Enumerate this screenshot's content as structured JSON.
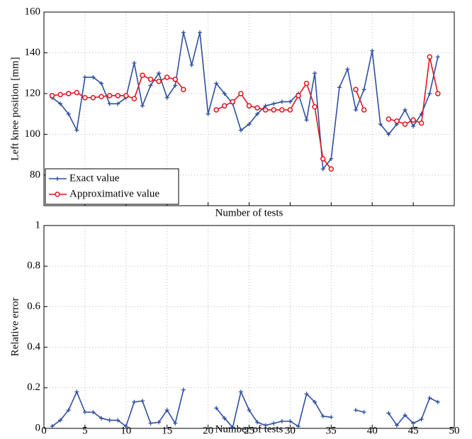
{
  "chart_data": [
    {
      "type": "line",
      "ylabel": "Left knee position [mm]",
      "xlabel": "Number of tests",
      "x": [
        1,
        2,
        3,
        4,
        5,
        6,
        7,
        8,
        9,
        10,
        11,
        12,
        13,
        14,
        15,
        16,
        17,
        18,
        19,
        20,
        21,
        22,
        23,
        24,
        25,
        26,
        27,
        28,
        29,
        30,
        31,
        32,
        33,
        34,
        35,
        36,
        37,
        38,
        39,
        40,
        41,
        42,
        43,
        44,
        45,
        46,
        47,
        48
      ],
      "series": [
        {
          "name": "Exact value",
          "color": "#2f4f9f",
          "marker": "plus",
          "values": [
            118,
            115,
            110,
            102,
            128,
            128,
            125,
            115,
            115,
            118,
            135,
            114,
            124,
            130,
            118,
            124,
            150,
            134,
            150,
            110,
            125,
            120,
            115,
            102,
            105,
            110,
            114,
            115,
            116,
            116,
            120,
            107,
            130,
            83,
            88,
            123,
            132,
            112,
            122,
            141,
            105,
            100,
            105,
            112,
            104,
            110,
            120,
            138
          ]
        },
        {
          "name": "Approximative value",
          "color": "#e3141e",
          "marker": "circle",
          "values": [
            119,
            119.5,
            120,
            120.5,
            118,
            118,
            118.5,
            119,
            119,
            119,
            117.5,
            129,
            127,
            126,
            128,
            127,
            122,
            null,
            null,
            null,
            112,
            114,
            116,
            120,
            114,
            113,
            112,
            112,
            112,
            112,
            119,
            125,
            113.5,
            88,
            83,
            null,
            null,
            122,
            112,
            null,
            null,
            107.5,
            106.5,
            105,
            107,
            105.5,
            138,
            120
          ]
        }
      ],
      "xlim": [
        0,
        50
      ],
      "xticks": [
        0,
        5,
        10,
        15,
        20,
        25,
        30,
        35,
        40,
        45,
        50
      ],
      "show_xtick_labels": false,
      "ylim": [
        65,
        160
      ],
      "yticks": [
        80,
        100,
        120,
        140,
        160
      ],
      "grid": true,
      "legend": "lower left"
    },
    {
      "type": "line",
      "ylabel": "Relative error",
      "xlabel": "Number of tests",
      "x": [
        1,
        2,
        3,
        4,
        5,
        6,
        7,
        8,
        9,
        10,
        11,
        12,
        13,
        14,
        15,
        16,
        17,
        18,
        19,
        20,
        21,
        22,
        23,
        24,
        25,
        26,
        27,
        28,
        29,
        30,
        31,
        32,
        33,
        34,
        35,
        36,
        37,
        38,
        39,
        40,
        41,
        42,
        43,
        44,
        45,
        46,
        47,
        48
      ],
      "series": [
        {
          "color": "#2f4f9f",
          "marker": "plus",
          "values": [
            0.01,
            0.04,
            0.09,
            0.18,
            0.08,
            0.08,
            0.05,
            0.04,
            0.04,
            0.01,
            0.13,
            0.135,
            0.025,
            0.03,
            0.09,
            0.025,
            0.19,
            null,
            null,
            null,
            0.1,
            0.05,
            0.005,
            0.18,
            0.09,
            0.03,
            0.015,
            0.025,
            0.035,
            0.035,
            0.01,
            0.17,
            0.13,
            0.06,
            0.055,
            null,
            null,
            0.09,
            0.08,
            null,
            null,
            0.075,
            0.015,
            0.065,
            0.025,
            0.045,
            0.15,
            0.13
          ]
        }
      ],
      "xlim": [
        0,
        50
      ],
      "xticks": [
        0,
        5,
        10,
        15,
        20,
        25,
        30,
        35,
        40,
        45,
        50
      ],
      "show_xtick_labels": true,
      "ylim": [
        0,
        1
      ],
      "yticks": [
        0,
        0.2,
        0.4,
        0.6,
        0.8,
        1
      ],
      "grid": true
    }
  ]
}
